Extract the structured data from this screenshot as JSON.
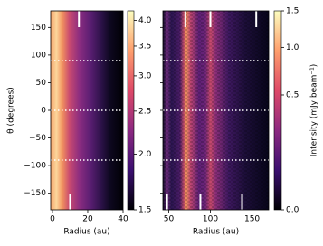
{
  "chart_data": [
    {
      "type": "heatmap",
      "xlabel": "Radius (au)",
      "ylabel": "θ (degrees)",
      "xlim": [
        -1,
        40
      ],
      "xticks": [
        0,
        20,
        40
      ],
      "ylim": [
        -180,
        180
      ],
      "yticks": [
        {
          "value": -150,
          "label": "−150"
        },
        {
          "value": -100,
          "label": "−100"
        },
        {
          "value": -50,
          "label": "−50"
        },
        0,
        50,
        100,
        150
      ],
      "hlines": [
        -90,
        0,
        90
      ],
      "markers_top": [
        15
      ],
      "markers_bottom": [
        10
      ],
      "marker_color": "#ffffff",
      "colorbar": {
        "lim": [
          1.5,
          4.2
        ],
        "scale": "log",
        "ticks": [
          1.5,
          {
            "value": 2.0,
            "label": "2.0"
          },
          2.5,
          {
            "value": 3.0,
            "label": "3.0"
          },
          3.5,
          {
            "value": 4.0,
            "label": "4.0"
          }
        ]
      }
    },
    {
      "type": "heatmap",
      "xlabel": "Radius (au)",
      "xlim": [
        43,
        170
      ],
      "xticks": [
        50,
        100,
        150
      ],
      "ylim": [
        -180,
        180
      ],
      "yticks": [
        -150,
        -100,
        -50,
        0,
        50,
        100,
        150
      ],
      "hlines": [
        -90,
        0,
        90
      ],
      "markers_top": [
        70,
        100,
        155
      ],
      "markers_bottom": [
        48,
        88,
        138
      ],
      "marker_color": "#ffffff",
      "colorbar": {
        "label": "Intensity (mJy beam⁻¹)",
        "lim": [
          0,
          1.5
        ],
        "scale": "sqrt",
        "ticks": [
          {
            "value": 0,
            "label": "0.0"
          },
          0.5,
          {
            "value": 1.0,
            "label": "1.0"
          },
          1.5
        ]
      }
    }
  ]
}
